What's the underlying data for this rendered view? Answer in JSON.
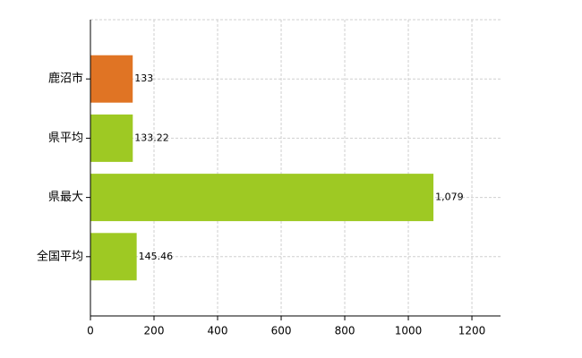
{
  "chart_data": {
    "type": "hbar",
    "categories": [
      "鹿沼市",
      "県平均",
      "県最大",
      "全国平均"
    ],
    "values": [
      133,
      133.22,
      1079,
      145.46
    ],
    "value_labels": [
      "133",
      "133.22",
      "1,079",
      "145.46"
    ],
    "colors": [
      "#e07424",
      "#9ec923",
      "#9ec923",
      "#9ec923"
    ],
    "xlim": [
      0,
      1290
    ],
    "xticks": [
      0,
      200,
      400,
      600,
      800,
      1000,
      1200
    ],
    "grid": true
  }
}
